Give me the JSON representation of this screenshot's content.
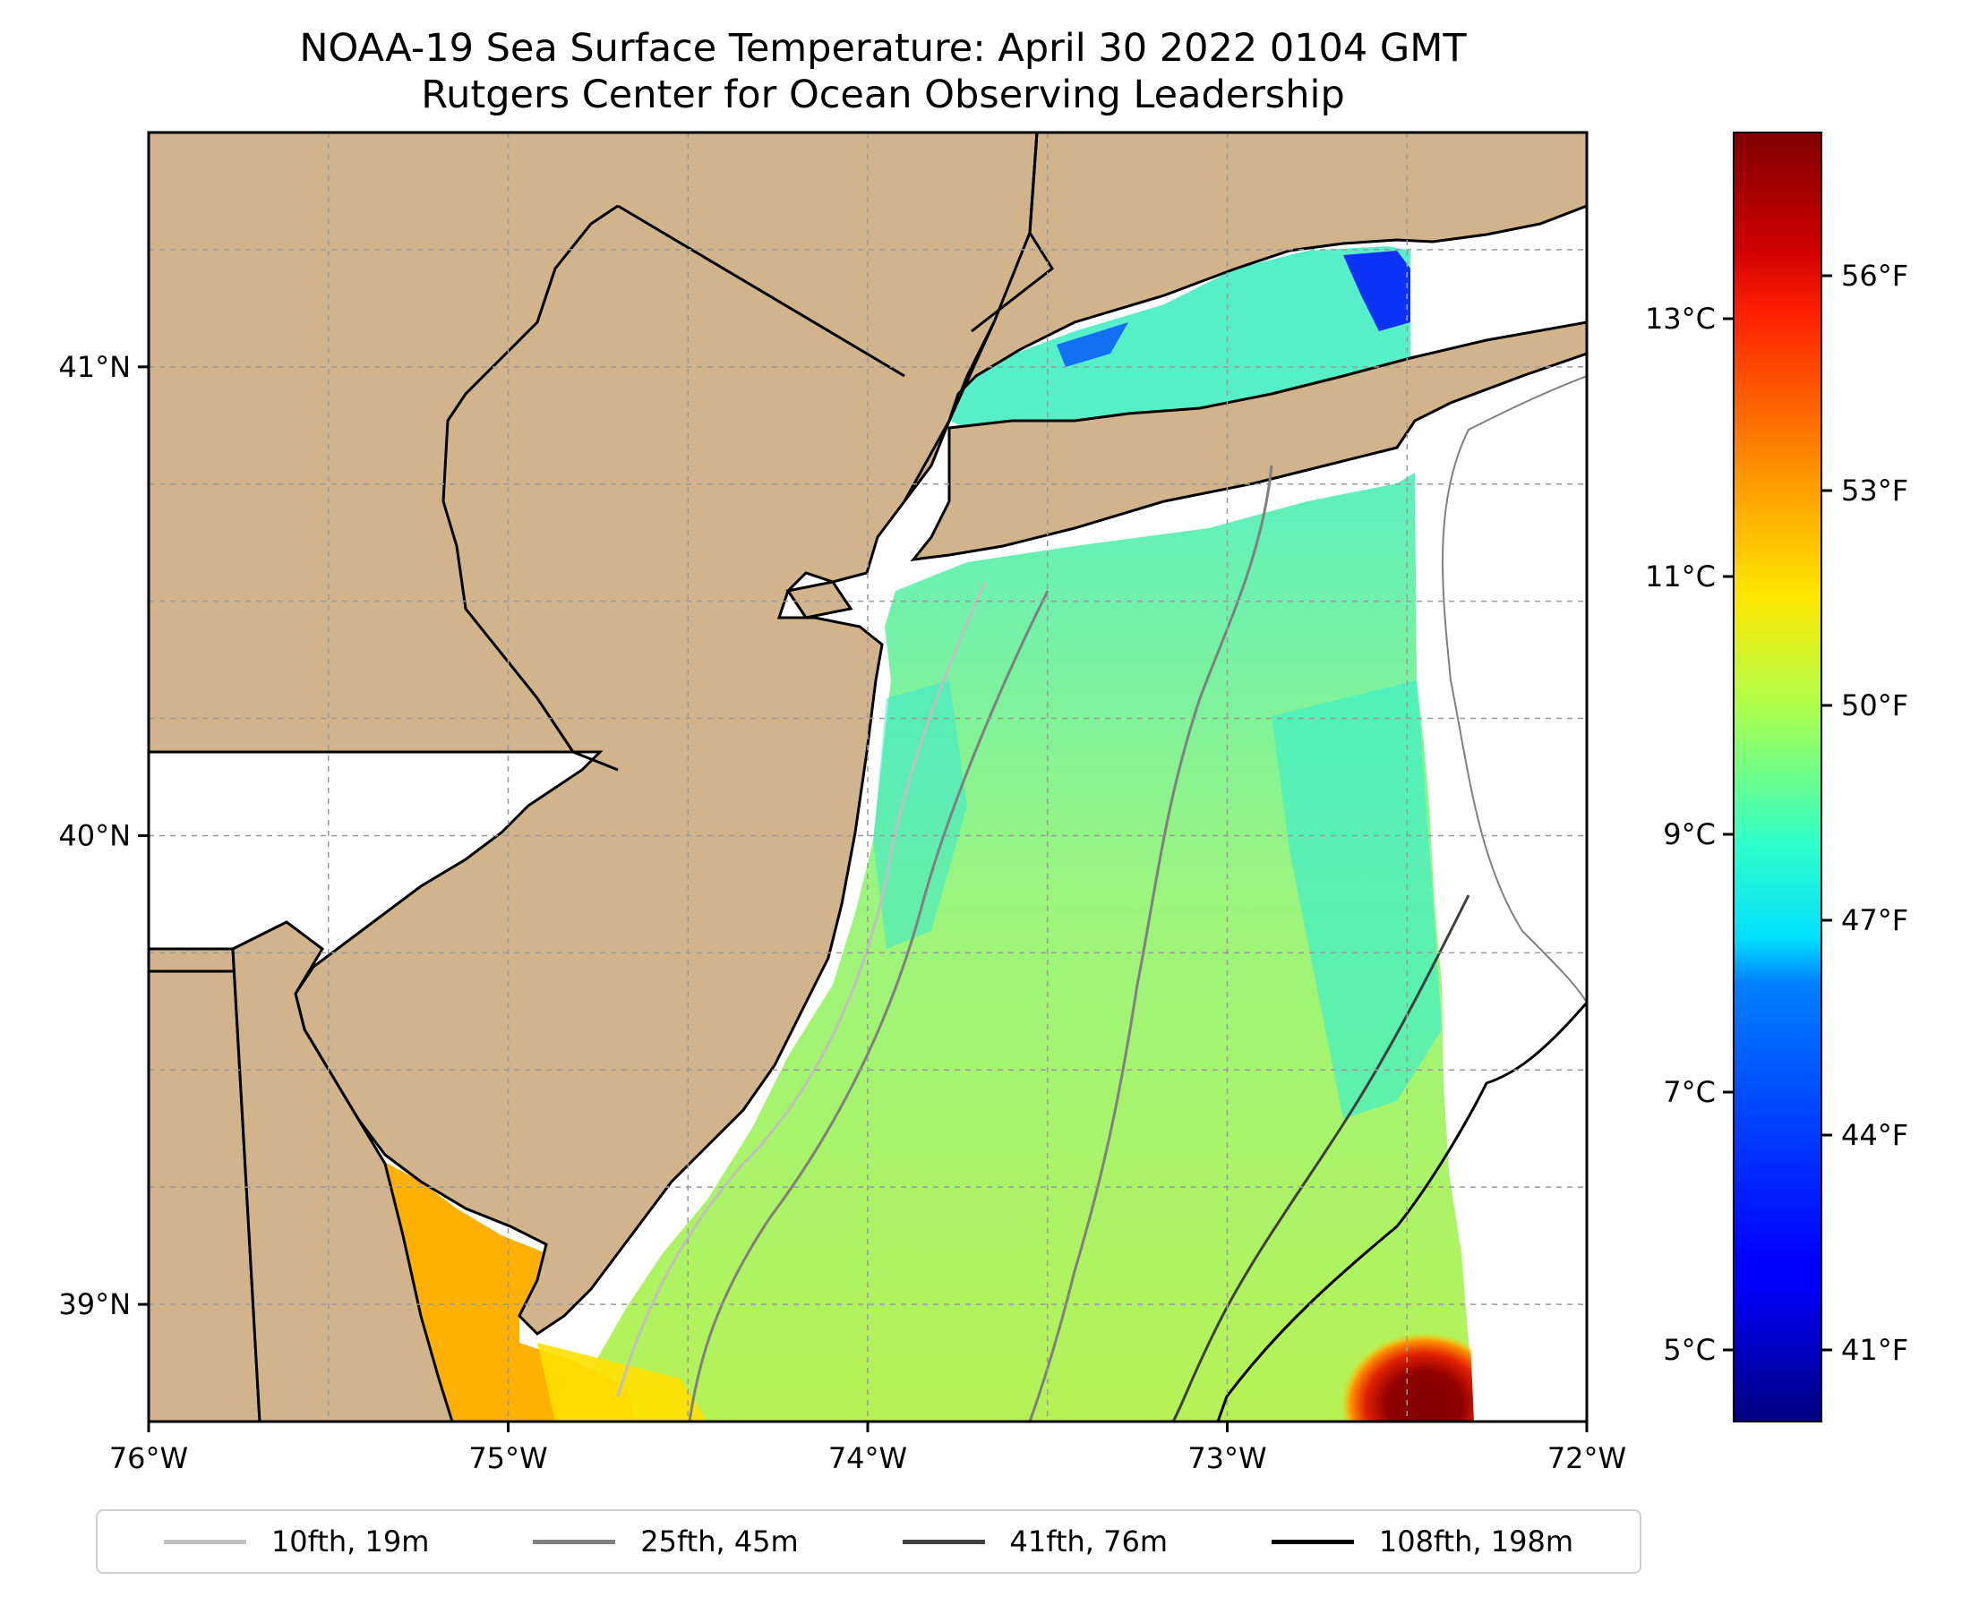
{
  "title": {
    "line1": "NOAA-19 Sea Surface Temperature: April 30 2022 0104 GMT",
    "line2": "Rutgers Center for Ocean Observing Leadership"
  },
  "map": {
    "lon_range": [
      -76.0,
      -72.0
    ],
    "lat_range": [
      38.75,
      41.5
    ],
    "lon_ticks": [
      "76°W",
      "75°W",
      "74°W",
      "73°W",
      "72°W"
    ],
    "lat_ticks": [
      "41°N",
      "40°N",
      "39°N"
    ],
    "gridlines": true,
    "land_color": "#d2b48c",
    "coastline_color": "#000000"
  },
  "colorbar": {
    "colormap": "jet",
    "celsius_ticks": [
      "5°C",
      "7°C",
      "9°C",
      "11°C",
      "13°C"
    ],
    "fahrenheit_ticks": [
      "41°F",
      "44°F",
      "47°F",
      "50°F",
      "53°F",
      "56°F"
    ],
    "range_f": [
      40,
      58
    ]
  },
  "legend": {
    "items": [
      {
        "label": "10fth, 19m",
        "color": "#c0c0c0"
      },
      {
        "label": "25fth, 45m",
        "color": "#808080"
      },
      {
        "label": "41fth, 76m",
        "color": "#404040"
      },
      {
        "label": "108fth, 198m",
        "color": "#000000"
      }
    ]
  }
}
